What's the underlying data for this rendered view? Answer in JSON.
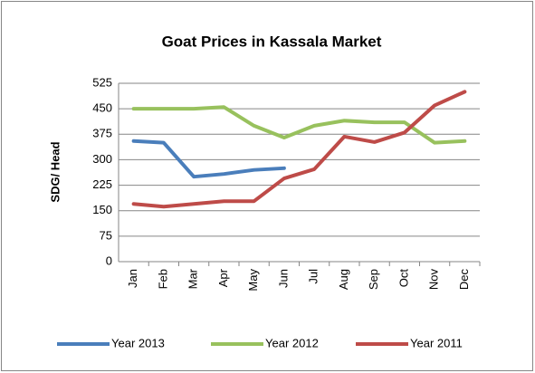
{
  "chart_data": {
    "type": "line",
    "title": "Goat Prices in Kassala Market",
    "y_label": "SDG/ Head",
    "categories": [
      "Jan",
      "Feb",
      "Mar",
      "Apr",
      "May",
      "Jun",
      "Jul",
      "Aug",
      "Sep",
      "Oct",
      "Nov",
      "Dec"
    ],
    "series": [
      {
        "name": "Year 2013",
        "color": "#4a7ebb",
        "values": [
          355,
          350,
          250,
          258,
          270,
          275,
          null,
          null,
          null,
          null,
          null,
          null
        ]
      },
      {
        "name": "Year 2012",
        "color": "#98c15d",
        "values": [
          450,
          450,
          450,
          455,
          400,
          365,
          400,
          415,
          410,
          410,
          350,
          355
        ]
      },
      {
        "name": "Year 2011",
        "color": "#be4b48",
        "values": [
          170,
          162,
          170,
          178,
          178,
          245,
          272,
          368,
          352,
          380,
          460,
          500
        ]
      }
    ],
    "ylim": [
      0,
      525
    ],
    "yticks": [
      0,
      75,
      150,
      225,
      300,
      375,
      450,
      525
    ],
    "grid": true,
    "legend": "bottom"
  }
}
